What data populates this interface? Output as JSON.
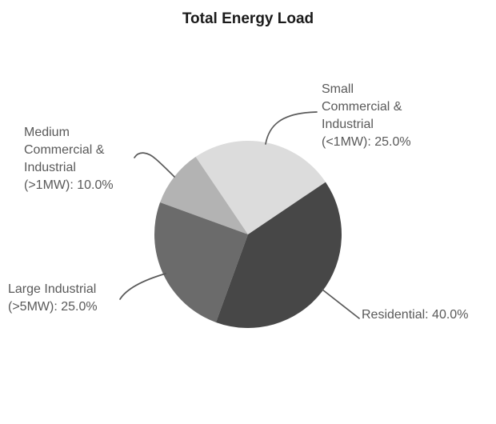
{
  "title": "Total Energy Load",
  "chart_data": {
    "type": "pie",
    "title": "Total Energy Load",
    "start_angle_deg": 34,
    "direction": "counterclockwise",
    "legend_position": "none",
    "total_percent": 100.0,
    "slices": [
      {
        "id": "small-ci",
        "label": "Small Commercial & Industrial (<1MW)",
        "value": 25.0,
        "color": "#dcdcdc"
      },
      {
        "id": "medium-ci",
        "label": "Medium Commercial & Industrial (>1MW)",
        "value": 10.0,
        "color": "#b3b3b3"
      },
      {
        "id": "large-ind",
        "label": "Large Industrial (>5MW)",
        "value": 25.0,
        "color": "#6b6b6b"
      },
      {
        "id": "residential",
        "label": "Residential",
        "value": 40.0,
        "color": "#474747"
      }
    ],
    "labels_display": {
      "small_ci": "Small\nCommercial &\nIndustrial\n(<1MW): 25.0%",
      "medium_ci": "Medium\nCommercial &\nIndustrial\n(>1MW): 10.0%",
      "large_ind": "Large Industrial\n(>5MW): 25.0%",
      "residential": "Residential: 40.0%"
    },
    "colors": {
      "label_text": "#595959",
      "leader_line": "#595959",
      "title_text": "#1a1a1a",
      "background": "#ffffff"
    }
  }
}
